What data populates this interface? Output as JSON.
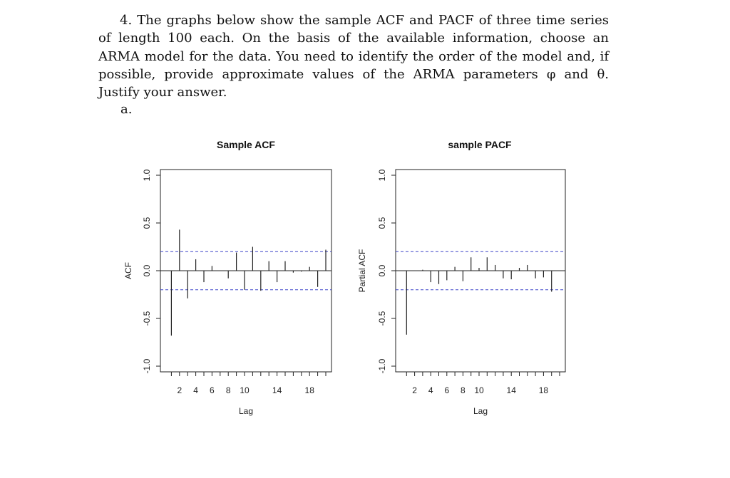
{
  "question": {
    "text": "4. The graphs below show the sample ACF and PACF of three time series of length 100 each. On the basis of the available information, choose an ARMA model for the data. You need to identify the order of the model and, if possible, provide approximate values of the ARMA parameters φ and θ. Justify your answer.",
    "part_label": "a."
  },
  "chart_data": [
    {
      "type": "bar",
      "title": "Sample ACF",
      "xlabel": "Lag",
      "ylabel": "ACF",
      "x": [
        1,
        2,
        3,
        4,
        5,
        6,
        7,
        8,
        9,
        10,
        11,
        12,
        13,
        14,
        15,
        16,
        17,
        18,
        19,
        20
      ],
      "values": [
        -0.68,
        0.43,
        -0.29,
        0.12,
        -0.12,
        0.05,
        0.0,
        -0.08,
        0.19,
        -0.2,
        0.25,
        -0.21,
        0.1,
        -0.12,
        0.1,
        -0.02,
        -0.01,
        0.04,
        -0.17,
        0.22
      ],
      "xticks": [
        2,
        4,
        6,
        8,
        10,
        14,
        18
      ],
      "yticks": [
        "-1.0",
        "-0.5",
        "0.0",
        "0.5",
        "1.0"
      ],
      "ylim": [
        -1.0,
        1.0
      ],
      "xlim": [
        0,
        20
      ],
      "conf_band": 0.2,
      "band_color": "#3d45c8"
    },
    {
      "type": "bar",
      "title": "sample PACF",
      "xlabel": "Lag",
      "ylabel": "Partial ACF",
      "x": [
        1,
        2,
        3,
        4,
        5,
        6,
        7,
        8,
        9,
        10,
        11,
        12,
        13,
        14,
        15,
        16,
        17,
        18,
        19,
        20
      ],
      "values": [
        -0.67,
        0.0,
        0.01,
        -0.12,
        -0.14,
        -0.1,
        0.04,
        -0.11,
        0.14,
        0.03,
        0.14,
        0.06,
        -0.08,
        -0.09,
        0.03,
        0.06,
        -0.08,
        -0.07,
        -0.22,
        0.0
      ],
      "xticks": [
        2,
        4,
        6,
        8,
        10,
        14,
        18
      ],
      "yticks": [
        "-1.0",
        "-0.5",
        "0.0",
        "0.5",
        "1.0"
      ],
      "ylim": [
        -1.0,
        1.0
      ],
      "xlim": [
        0,
        20
      ],
      "conf_band": 0.2,
      "band_color": "#3d45c8"
    }
  ]
}
